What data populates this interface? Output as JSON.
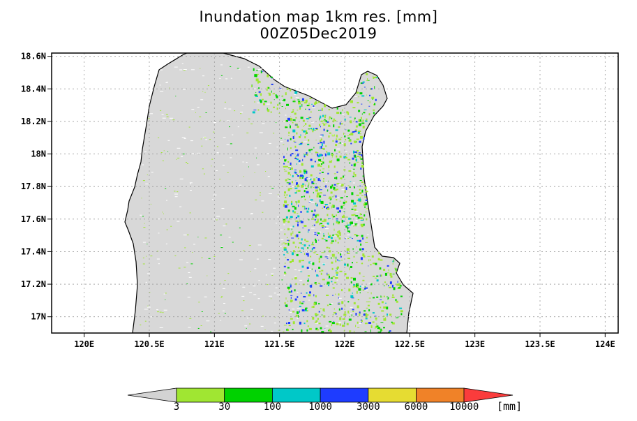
{
  "title": "Inundation map 1km res. [mm]",
  "subtitle": "00Z05Dec2019",
  "map": {
    "lon_range": [
      119.75,
      124.1
    ],
    "lat_range": [
      16.9,
      18.62
    ],
    "x_ticks": [
      {
        "value": 120.0,
        "label": "120E"
      },
      {
        "value": 120.5,
        "label": "120.5E"
      },
      {
        "value": 121.0,
        "label": "121E"
      },
      {
        "value": 121.5,
        "label": "121.5E"
      },
      {
        "value": 122.0,
        "label": "122E"
      },
      {
        "value": 122.5,
        "label": "122.5E"
      },
      {
        "value": 123.0,
        "label": "123E"
      },
      {
        "value": 123.5,
        "label": "123.5E"
      },
      {
        "value": 124.0,
        "label": "124E"
      }
    ],
    "y_ticks": [
      {
        "value": 18.6,
        "label": "18.6N"
      },
      {
        "value": 18.4,
        "label": "18.4N"
      },
      {
        "value": 18.2,
        "label": "18.2N"
      },
      {
        "value": 18.0,
        "label": "18N"
      },
      {
        "value": 17.8,
        "label": "17.8N"
      },
      {
        "value": 17.6,
        "label": "17.6N"
      },
      {
        "value": 17.4,
        "label": "17.4N"
      },
      {
        "value": 17.2,
        "label": "17.2N"
      },
      {
        "value": 17.0,
        "label": "17N"
      }
    ],
    "grid": true,
    "land_color": "#d8d8d8",
    "sea_color": "#ffffff"
  },
  "legend": {
    "labels": [
      "3",
      "30",
      "100",
      "1000",
      "3000",
      "6000",
      "10000"
    ],
    "unit": "[mm]",
    "colors": [
      "#d3d3d3",
      "#a0e632",
      "#00d200",
      "#00c8c8",
      "#1e3cff",
      "#e6dc32",
      "#f08228",
      "#fa3c3c"
    ]
  }
}
